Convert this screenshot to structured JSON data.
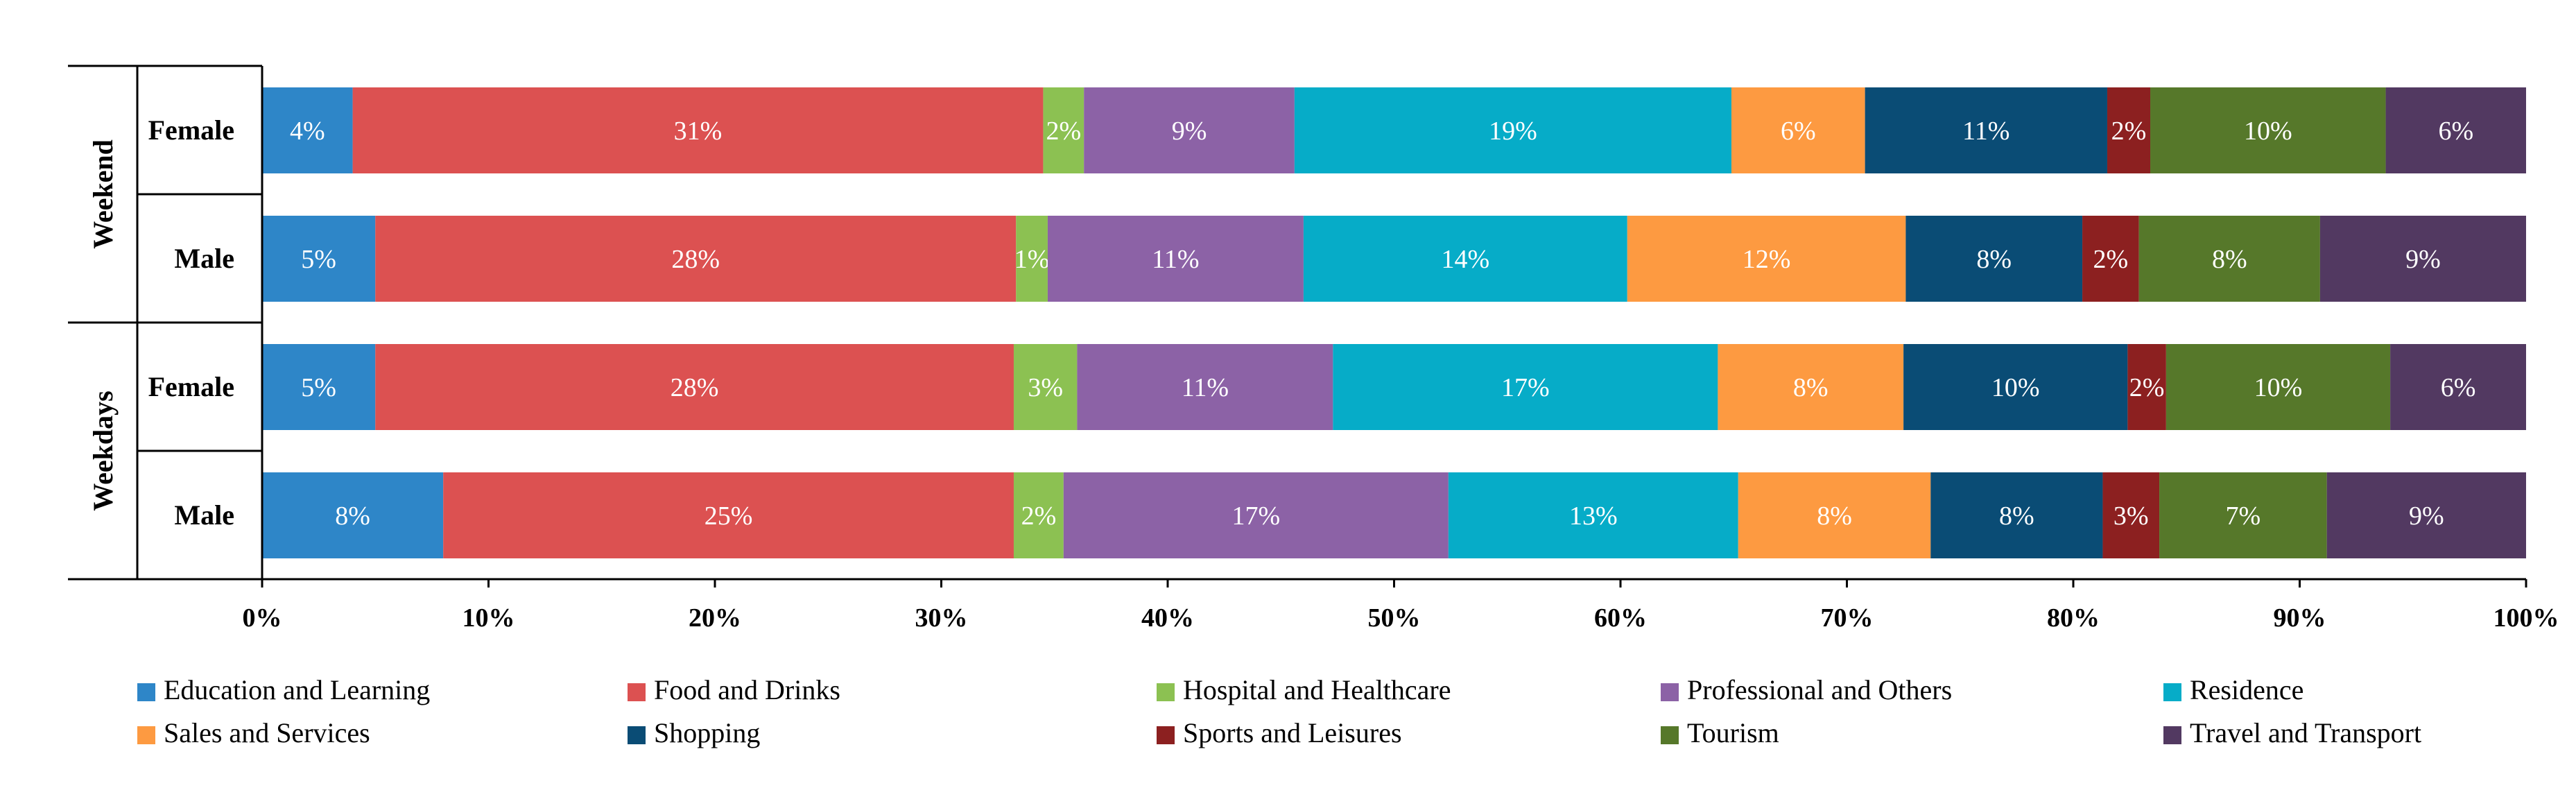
{
  "chart_data": {
    "type": "bar",
    "orientation": "horizontal",
    "stacked": "percent",
    "groups": [
      {
        "label": "Weekend",
        "rows": [
          "Female",
          "Male"
        ]
      },
      {
        "label": "Weekdays",
        "rows": [
          "Female",
          "Male"
        ]
      }
    ],
    "categories": [
      "Female",
      "Male",
      "Female",
      "Male"
    ],
    "series": [
      {
        "name": "Education and Learning",
        "color": "#2E86C8",
        "values": [
          4,
          5,
          5,
          8
        ],
        "labels": [
          "4%",
          "5%",
          "5%",
          "8%"
        ]
      },
      {
        "name": "Food and Drinks",
        "color": "#DC5151",
        "values": [
          30.5,
          28.3,
          28.2,
          25.2
        ],
        "labels": [
          "31%",
          "28%",
          "28%",
          "25%"
        ]
      },
      {
        "name": "Hospital and Healthcare",
        "color": "#8CC152",
        "values": [
          1.8,
          1.4,
          2.8,
          2.2
        ],
        "labels": [
          "2%",
          "1%",
          "3%",
          "2%"
        ]
      },
      {
        "name": "Professional and Others",
        "color": "#8C62A6",
        "values": [
          9.3,
          11.3,
          11.3,
          17
        ],
        "labels": [
          "9%",
          "11%",
          "11%",
          "17%"
        ]
      },
      {
        "name": "Residence",
        "color": "#06ACC8",
        "values": [
          19.3,
          14.3,
          17,
          12.8
        ],
        "labels": [
          "19%",
          "14%",
          "17%",
          "13%"
        ]
      },
      {
        "name": "Sales and Services",
        "color": "#FD9A41",
        "values": [
          5.9,
          12.3,
          8.2,
          8.5
        ],
        "labels": [
          "6%",
          "12%",
          "8%",
          "8%"
        ]
      },
      {
        "name": "Shopping",
        "color": "#0A4C75",
        "values": [
          10.7,
          7.8,
          9.9,
          7.6
        ],
        "labels": [
          "11%",
          "8%",
          "10%",
          "8%"
        ]
      },
      {
        "name": "Sports and Leisures",
        "color": "#8C2020",
        "values": [
          1.9,
          2.5,
          1.7,
          2.5
        ],
        "labels": [
          "2%",
          "2%",
          "2%",
          "3%"
        ]
      },
      {
        "name": "Tourism",
        "color": "#56782A",
        "values": [
          10.4,
          8.0,
          9.9,
          7.4
        ],
        "labels": [
          "10%",
          "8%",
          "10%",
          "7%"
        ]
      },
      {
        "name": "Travel and Transport",
        "color": "#523961",
        "values": [
          6.2,
          8.9,
          6.0,
          8.8
        ],
        "labels": [
          "6%",
          "9%",
          "6%",
          "9%"
        ]
      }
    ],
    "xlim": [
      0,
      100
    ],
    "xticks": [
      "0%",
      "10%",
      "20%",
      "30%",
      "40%",
      "50%",
      "60%",
      "70%",
      "80%",
      "90%",
      "100%"
    ],
    "title": "",
    "xlabel": "",
    "ylabel": "",
    "grid": false,
    "legend_position": "bottom"
  }
}
